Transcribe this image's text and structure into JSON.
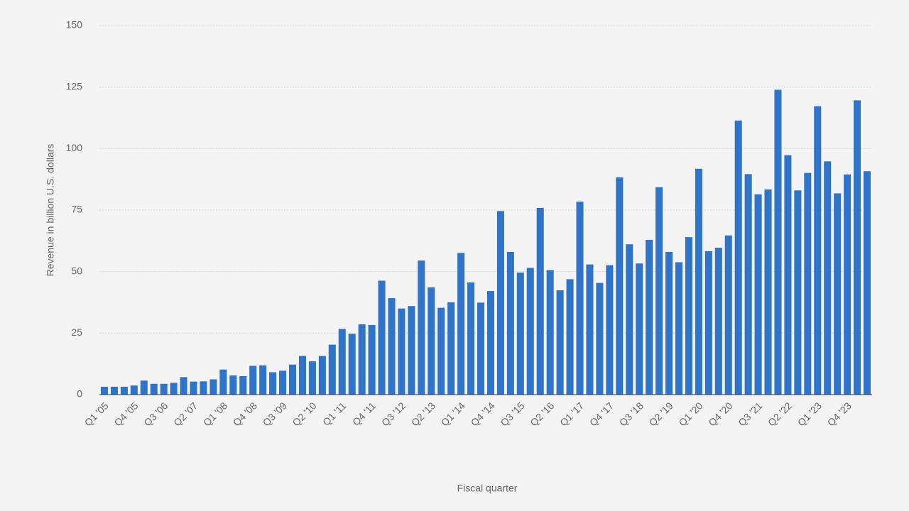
{
  "chart_data": {
    "type": "bar",
    "ylabel": "Revenue in billion U.S. dollars",
    "xlabel": "Fiscal quarter",
    "categories": [
      "Q1 '05",
      null,
      null,
      "Q4 '05",
      null,
      null,
      "Q3 '06",
      null,
      null,
      "Q2 '07",
      null,
      null,
      "Q1 '08",
      null,
      null,
      "Q4 '08",
      null,
      null,
      "Q3 '09",
      null,
      null,
      "Q2 '10",
      null,
      null,
      "Q1 '11",
      null,
      null,
      "Q4 '11",
      null,
      null,
      "Q3 '12",
      null,
      null,
      "Q2 '13",
      null,
      null,
      "Q1 '14",
      null,
      null,
      "Q4 '14",
      null,
      null,
      "Q3 '15",
      null,
      null,
      "Q2 '16",
      null,
      null,
      "Q1 '17",
      null,
      null,
      "Q4 '17",
      null,
      null,
      "Q3 '18",
      null,
      null,
      "Q2 '19",
      null,
      null,
      "Q1 '20",
      null,
      null,
      "Q4 '20",
      null,
      null,
      "Q3 '21",
      null,
      null,
      "Q2 '22",
      null,
      null,
      "Q1 '23",
      null,
      null,
      "Q4 '23",
      null,
      null
    ],
    "values": [
      3.2,
      3.2,
      3.2,
      3.7,
      5.7,
      4.4,
      4.4,
      4.8,
      7.1,
      5.3,
      5.4,
      6.2,
      10.2,
      7.8,
      7.5,
      11.7,
      11.9,
      9.1,
      9.7,
      12.2,
      15.7,
      13.5,
      15.7,
      20.3,
      26.7,
      24.7,
      28.6,
      28.3,
      46.3,
      39.2,
      35.0,
      36.0,
      54.5,
      43.6,
      35.3,
      37.5,
      57.6,
      45.6,
      37.4,
      42.1,
      74.6,
      58.0,
      49.6,
      51.5,
      75.9,
      50.6,
      42.4,
      46.9,
      78.4,
      52.9,
      45.4,
      52.6,
      88.3,
      61.1,
      53.3,
      62.9,
      84.3,
      58.0,
      53.8,
      64.0,
      91.8,
      58.3,
      59.7,
      64.7,
      111.4,
      89.6,
      81.4,
      83.4,
      123.9,
      97.3,
      83.0,
      90.1,
      117.2,
      94.8,
      81.8,
      89.5,
      119.6,
      90.8
    ],
    "color": "#2f74c9",
    "ylim": [
      0,
      150
    ],
    "yticks": [
      0,
      25,
      50,
      75,
      100,
      125,
      150
    ],
    "grid": true
  }
}
